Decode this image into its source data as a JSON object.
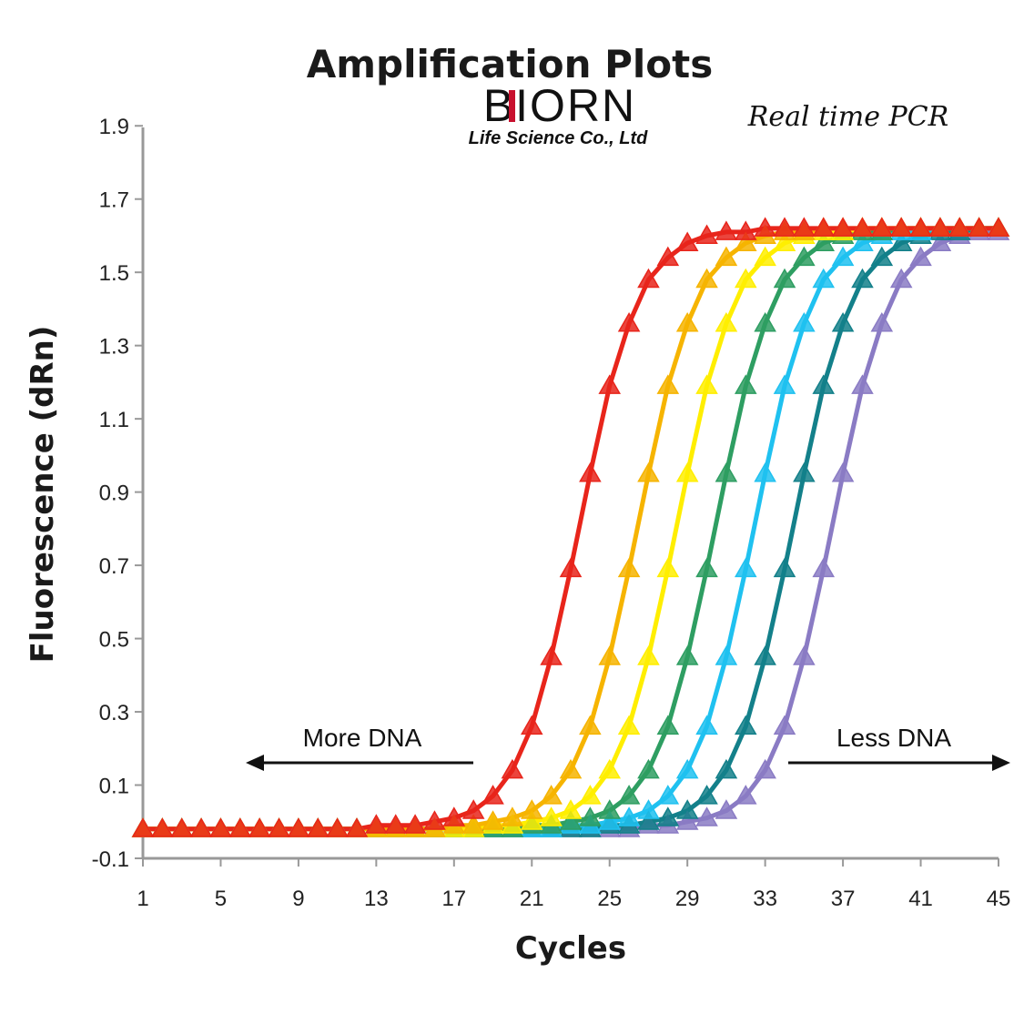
{
  "chart_data": {
    "type": "line",
    "title": "Amplification Plots",
    "xlabel": "Cycles",
    "ylabel": "Fluorescence (dRn)",
    "xlim": [
      1,
      45
    ],
    "ylim": [
      -0.1,
      2.0
    ],
    "x_ticks": [
      "1",
      "5",
      "9",
      "13",
      "17",
      "21",
      "25",
      "29",
      "33",
      "37",
      "41",
      "45"
    ],
    "y_ticks": [
      "-0.1",
      "0.1",
      "0.3",
      "0.5",
      "0.7",
      "0.9",
      "1.1",
      "1.3",
      "1.5",
      "1.7",
      "1.9"
    ],
    "grid": false,
    "legend": "none",
    "marker": "triangle",
    "x": [
      1,
      2,
      3,
      4,
      5,
      6,
      7,
      8,
      9,
      10,
      11,
      12,
      13,
      14,
      15,
      16,
      17,
      18,
      19,
      20,
      21,
      22,
      23,
      24,
      25,
      26,
      27,
      28,
      29,
      30,
      31,
      32,
      33,
      34,
      35,
      36,
      37,
      38,
      39,
      40,
      41,
      42,
      43,
      44,
      45
    ],
    "series": [
      {
        "color": "#e8251b",
        "values": [
          -0.02,
          -0.02,
          -0.02,
          -0.02,
          -0.02,
          -0.02,
          -0.02,
          -0.02,
          -0.02,
          -0.02,
          -0.02,
          -0.02,
          -0.01,
          -0.01,
          -0.01,
          0.0,
          0.01,
          0.03,
          0.07,
          0.14,
          0.26,
          0.45,
          0.69,
          0.95,
          1.19,
          1.36,
          1.48,
          1.54,
          1.58,
          1.6,
          1.61,
          1.61,
          1.62,
          1.62,
          1.62,
          1.62,
          1.62,
          1.62,
          1.62,
          1.62,
          1.62,
          1.62,
          1.62,
          1.62,
          1.62
        ]
      },
      {
        "color": "#f6b400",
        "values": [
          -0.02,
          -0.02,
          -0.02,
          -0.02,
          -0.02,
          -0.02,
          -0.02,
          -0.02,
          -0.02,
          -0.02,
          -0.02,
          -0.02,
          -0.02,
          -0.02,
          -0.02,
          -0.02,
          -0.01,
          -0.01,
          0.0,
          0.01,
          0.03,
          0.07,
          0.14,
          0.26,
          0.45,
          0.69,
          0.95,
          1.19,
          1.36,
          1.48,
          1.54,
          1.58,
          1.6,
          1.61,
          1.61,
          1.62,
          1.62,
          1.62,
          1.62,
          1.62,
          1.62,
          1.62,
          1.62,
          1.62,
          1.62
        ]
      },
      {
        "color": "#ffee00",
        "values": [
          -0.02,
          -0.02,
          -0.02,
          -0.02,
          -0.02,
          -0.02,
          -0.02,
          -0.02,
          -0.02,
          -0.02,
          -0.02,
          -0.02,
          -0.02,
          -0.02,
          -0.02,
          -0.02,
          -0.02,
          -0.02,
          -0.01,
          -0.01,
          0.0,
          0.01,
          0.03,
          0.07,
          0.14,
          0.26,
          0.45,
          0.69,
          0.95,
          1.19,
          1.36,
          1.48,
          1.54,
          1.58,
          1.6,
          1.61,
          1.61,
          1.62,
          1.62,
          1.62,
          1.62,
          1.62,
          1.62,
          1.62,
          1.62
        ]
      },
      {
        "color": "#2e9e62",
        "values": [
          -0.02,
          -0.02,
          -0.02,
          -0.02,
          -0.02,
          -0.02,
          -0.02,
          -0.02,
          -0.02,
          -0.02,
          -0.02,
          -0.02,
          -0.02,
          -0.02,
          -0.02,
          -0.02,
          -0.02,
          -0.02,
          -0.02,
          -0.02,
          -0.01,
          -0.01,
          0.0,
          0.01,
          0.03,
          0.07,
          0.14,
          0.26,
          0.45,
          0.69,
          0.95,
          1.19,
          1.36,
          1.48,
          1.54,
          1.58,
          1.6,
          1.61,
          1.61,
          1.62,
          1.62,
          1.62,
          1.62,
          1.62,
          1.62
        ]
      },
      {
        "color": "#1fc1f0",
        "values": [
          -0.02,
          -0.02,
          -0.02,
          -0.02,
          -0.02,
          -0.02,
          -0.02,
          -0.02,
          -0.02,
          -0.02,
          -0.02,
          -0.02,
          -0.02,
          -0.02,
          -0.02,
          -0.02,
          -0.02,
          -0.02,
          -0.02,
          -0.02,
          -0.02,
          -0.02,
          -0.01,
          -0.01,
          0.0,
          0.01,
          0.03,
          0.07,
          0.14,
          0.26,
          0.45,
          0.69,
          0.95,
          1.19,
          1.36,
          1.48,
          1.54,
          1.58,
          1.6,
          1.61,
          1.61,
          1.62,
          1.62,
          1.62,
          1.62
        ]
      },
      {
        "color": "#13808a",
        "values": [
          -0.02,
          -0.02,
          -0.02,
          -0.02,
          -0.02,
          -0.02,
          -0.02,
          -0.02,
          -0.02,
          -0.02,
          -0.02,
          -0.02,
          -0.02,
          -0.02,
          -0.02,
          -0.02,
          -0.02,
          -0.02,
          -0.02,
          -0.02,
          -0.02,
          -0.02,
          -0.02,
          -0.02,
          -0.01,
          -0.01,
          0.0,
          0.01,
          0.03,
          0.07,
          0.14,
          0.26,
          0.45,
          0.69,
          0.95,
          1.19,
          1.36,
          1.48,
          1.54,
          1.58,
          1.6,
          1.61,
          1.61,
          1.62,
          1.62
        ]
      },
      {
        "color": "#8a7bc4",
        "values": [
          -0.02,
          -0.02,
          -0.02,
          -0.02,
          -0.02,
          -0.02,
          -0.02,
          -0.02,
          -0.02,
          -0.02,
          -0.02,
          -0.02,
          -0.02,
          -0.02,
          -0.02,
          -0.02,
          -0.02,
          -0.02,
          -0.02,
          -0.02,
          -0.02,
          -0.02,
          -0.02,
          -0.02,
          -0.02,
          -0.02,
          -0.01,
          -0.01,
          0.0,
          0.01,
          0.03,
          0.07,
          0.14,
          0.26,
          0.45,
          0.69,
          0.95,
          1.19,
          1.36,
          1.48,
          1.54,
          1.58,
          1.6,
          1.61,
          1.61
        ]
      }
    ],
    "annotations": [
      {
        "text": "More DNA",
        "arrow": "left"
      },
      {
        "text": "Less DNA",
        "arrow": "right"
      }
    ]
  },
  "branding": {
    "logo_text": "BIORN",
    "logo_subtext": "Life Science Co., Ltd",
    "tagline": "Real time PCR",
    "logo_accent": "#c8102e"
  }
}
